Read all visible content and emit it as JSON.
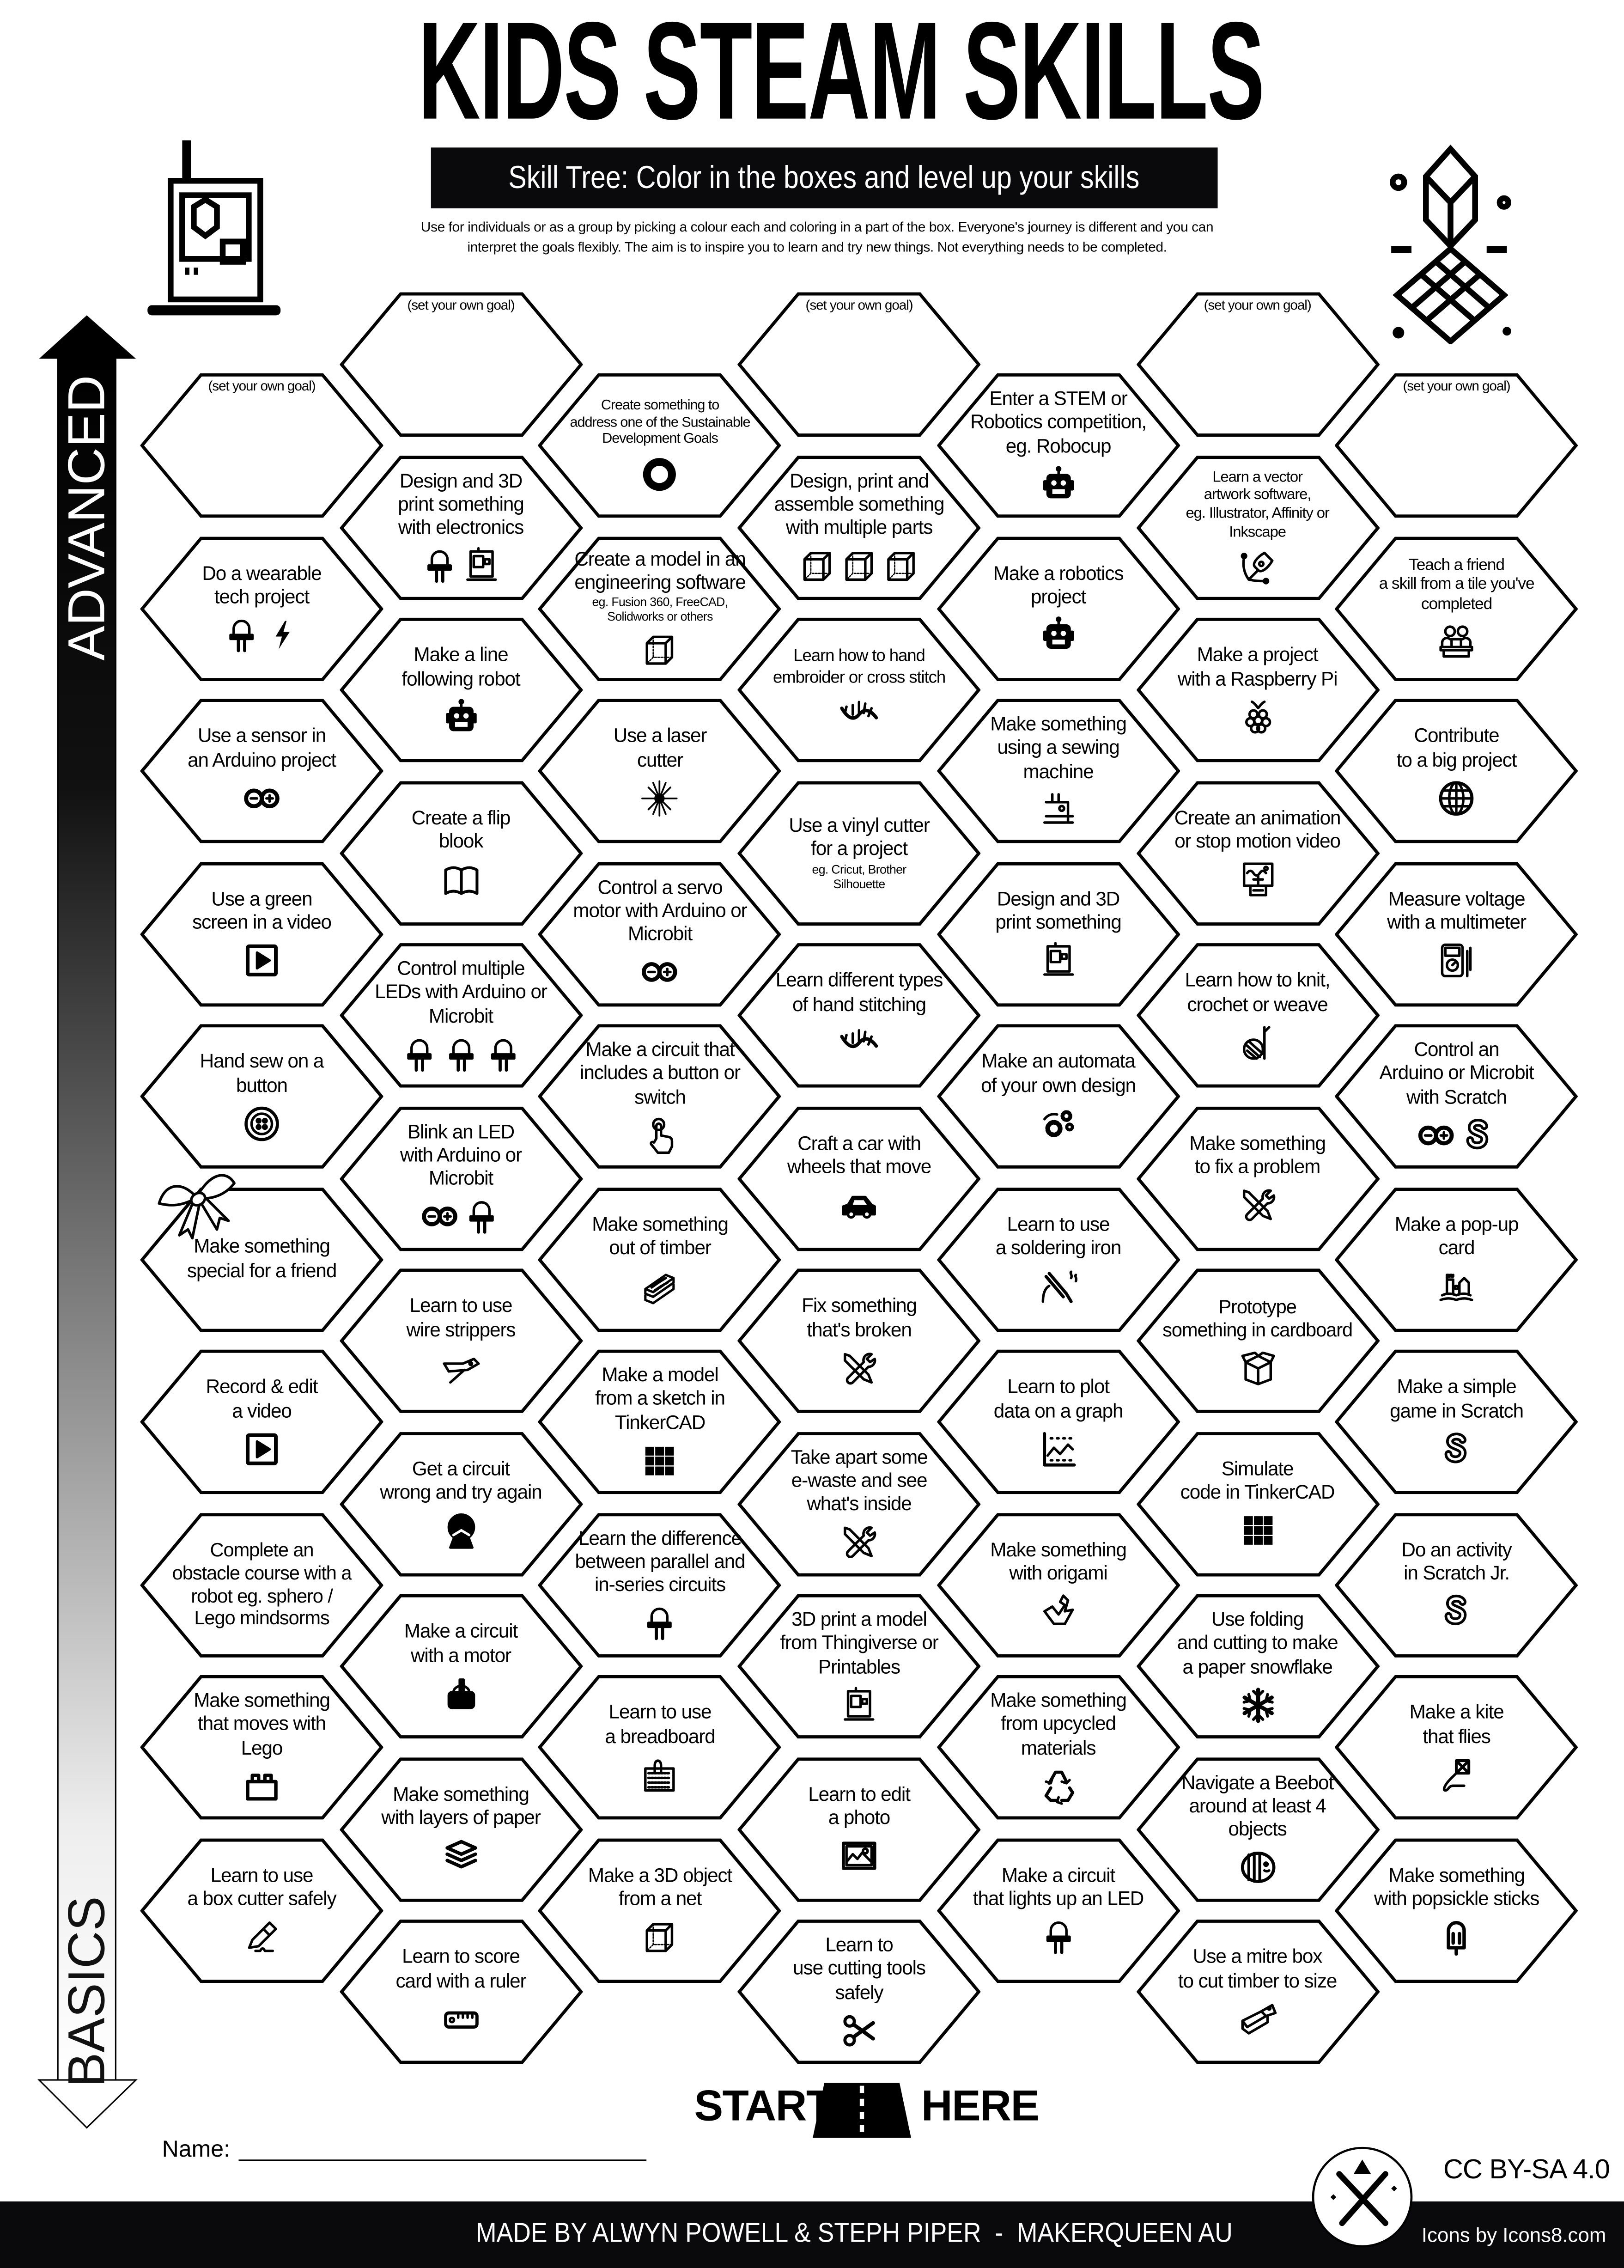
{
  "header": {
    "title": "KIDS STEAM SKILLS",
    "subtitle": "Skill Tree:  Color in the boxes and level up your skills",
    "intro": "Use for individuals or as a group by picking a colour each and coloring in a part of the box.  Everyone's journey is different and you can\ninterpret the goals flexibly.  The aim is to inspire you to learn and try new things. Not everything needs to be completed."
  },
  "progress_arrow": {
    "top_label": "ADVANCED",
    "bottom_label": "BASICS"
  },
  "columns": [
    {
      "hexes": [
        {
          "type": "goal",
          "label": "(set your own goal)"
        },
        {
          "label": "Do a wearable\ntech project",
          "icons": [
            "led",
            "lightning"
          ]
        },
        {
          "label": "Use a sensor in\nan Arduino project",
          "icons": [
            "arduino"
          ]
        },
        {
          "label": "Use a green\nscreen in a video",
          "icons": [
            "play"
          ]
        },
        {
          "label": "Hand sew on a\nbutton",
          "icons": [
            "sewing-button"
          ]
        },
        {
          "label": "Make something\nspecial for a friend",
          "icons": []
        },
        {
          "label": "Record & edit\na video",
          "icons": [
            "play"
          ]
        },
        {
          "label": "Complete an\nobstacle course with a\nrobot eg. sphero /\nLego mindsorms",
          "icons": []
        },
        {
          "label": "Make something\nthat moves with\nLego",
          "icons": [
            "lego-brick"
          ]
        },
        {
          "label": "Learn to use\na box cutter safely",
          "icons": [
            "box-cutter"
          ]
        }
      ]
    },
    {
      "hexes": [
        {
          "type": "goal",
          "label": "(set your own goal)"
        },
        {
          "label": "Design and 3D\nprint something\nwith electronics",
          "icons": [
            "led",
            "3d-printer"
          ]
        },
        {
          "label": "Make a line\nfollowing robot",
          "icons": [
            "robot"
          ]
        },
        {
          "label": "Create a flip\nblook",
          "icons": [
            "book"
          ]
        },
        {
          "label": "Control multiple\nLEDs with Arduino or\nMicrobit",
          "icons": [
            "led",
            "led",
            "led"
          ]
        },
        {
          "label": "Blink an LED\nwith Arduino or\nMicrobit",
          "icons": [
            "arduino",
            "led"
          ]
        },
        {
          "label": "Learn to use\nwire strippers",
          "icons": [
            "wire-stripper"
          ]
        },
        {
          "label": "Get a circuit\nwrong and try again",
          "icons": [
            "facepalm"
          ]
        },
        {
          "label": "Make a circuit\nwith a motor",
          "icons": [
            "motor"
          ]
        },
        {
          "label": "Make something\nwith layers of paper",
          "icons": [
            "layers"
          ]
        },
        {
          "label": "Learn to score\ncard with a ruler",
          "icons": [
            "ruler"
          ]
        }
      ]
    },
    {
      "hexes": [
        {
          "label": "Create something to\naddress one of the Sustainable\nDevelopment Goals",
          "icons": [
            "sdg-wheel"
          ]
        },
        {
          "label": "Create a model in an\nengineering software",
          "sub": "eg. Fusion 360, FreeCAD,\nSolidworks or others",
          "icons": [
            "cube"
          ]
        },
        {
          "label": "Use a laser\ncutter",
          "icons": [
            "laser"
          ]
        },
        {
          "label": "Control a servo\nmotor with Arduino or\nMicrobit",
          "icons": [
            "arduino"
          ]
        },
        {
          "label": "Make a circuit that\nincludes a button or\nswitch",
          "icons": [
            "hand-pointer"
          ]
        },
        {
          "label": "Make something\nout of timber",
          "icons": [
            "timber"
          ]
        },
        {
          "label": "Make a model\nfrom a sketch in\nTinkerCAD",
          "icons": [
            "tinkercad"
          ]
        },
        {
          "label": "Learn the difference\nbetween parallel and\nin-series circuits",
          "icons": [
            "led"
          ]
        },
        {
          "label": "Learn to use\na breadboard",
          "icons": [
            "breadboard"
          ]
        },
        {
          "label": "Make a 3D object\nfrom a net",
          "icons": [
            "cube"
          ]
        }
      ]
    },
    {
      "hexes": [
        {
          "type": "goal",
          "label": "(set your own goal)"
        },
        {
          "label": "Design, print and\nassemble something\nwith multiple parts",
          "icons": [
            "cube",
            "cube",
            "cube"
          ]
        },
        {
          "label": "Learn how to hand\nembroider or cross stitch",
          "icons": [
            "stitch"
          ]
        },
        {
          "label": "Use a vinyl cutter\nfor a project",
          "sub": "eg. Cricut, Brother\nSilhouette",
          "icons": []
        },
        {
          "label": "Learn different types\nof hand stitching",
          "icons": [
            "stitch"
          ]
        },
        {
          "label": "Craft a car with\nwheels that move",
          "icons": [
            "car"
          ]
        },
        {
          "label": "Fix something\nthat's broken",
          "icons": [
            "tools"
          ]
        },
        {
          "label": "Take apart some\ne-waste and see\nwhat's inside",
          "icons": [
            "tools"
          ]
        },
        {
          "label": "3D print a model\nfrom Thingiverse or\nPrintables",
          "icons": [
            "3d-printer"
          ]
        },
        {
          "label": "Learn to edit\na photo",
          "icons": [
            "photo"
          ]
        },
        {
          "label": "Learn to\nuse cutting tools\nsafely",
          "icons": [
            "scissors"
          ]
        }
      ]
    },
    {
      "hexes": [
        {
          "label": "Enter a STEM or\nRobotics competition,\neg. Robocup",
          "icons": [
            "robot"
          ]
        },
        {
          "label": "Make a robotics\nproject",
          "icons": [
            "robot"
          ]
        },
        {
          "label": "Make something\nusing a sewing\nmachine",
          "icons": [
            "sewing-machine"
          ]
        },
        {
          "label": "Design and 3D\nprint something",
          "icons": [
            "3d-printer"
          ]
        },
        {
          "label": "Make an automata\nof your own design",
          "icons": [
            "gears"
          ]
        },
        {
          "label": "Learn to use\na soldering iron",
          "icons": [
            "soldering-iron"
          ]
        },
        {
          "label": "Learn to plot\ndata on a graph",
          "icons": [
            "graph"
          ]
        },
        {
          "label": "Make something\nwith origami",
          "icons": [
            "origami"
          ]
        },
        {
          "label": "Make something\nfrom upcycled\nmaterials",
          "icons": [
            "recycle"
          ]
        },
        {
          "label": "Make a circuit\nthat lights up an LED",
          "icons": [
            "led"
          ]
        }
      ]
    },
    {
      "hexes": [
        {
          "type": "goal",
          "label": "(set your own goal)"
        },
        {
          "label": "Learn a vector\nartwork software,\neg. Illustrator, Affinity or\nInkscape",
          "icons": [
            "pen-tool"
          ]
        },
        {
          "label": "Make a project\nwith a Raspberry Pi",
          "icons": [
            "raspberry-pi"
          ]
        },
        {
          "label": "Create an animation\nor stop motion video",
          "icons": [
            "animation-screen"
          ]
        },
        {
          "label": "Learn how to knit,\ncrochet or weave",
          "icons": [
            "yarn"
          ]
        },
        {
          "label": "Make something\nto fix a problem",
          "icons": [
            "tools"
          ]
        },
        {
          "label": "Prototype\nsomething in cardboard",
          "icons": [
            "box"
          ]
        },
        {
          "label": "Simulate\ncode in TinkerCAD",
          "icons": [
            "tinkercad"
          ]
        },
        {
          "label": "Use folding\nand cutting to make\na paper snowflake",
          "icons": [
            "snowflake"
          ]
        },
        {
          "label": "Navigate a Beebot\naround at least 4\nobjects",
          "icons": [
            "beebot"
          ]
        },
        {
          "label": "Use a mitre box\nto cut timber to size",
          "icons": [
            "mitre-saw"
          ]
        }
      ]
    },
    {
      "hexes": [
        {
          "type": "goal",
          "label": "(set your own goal)"
        },
        {
          "label": "Teach a friend\na skill from a tile you've\ncompleted",
          "icons": [
            "teaching"
          ]
        },
        {
          "label": "Contribute\nto a big project",
          "icons": [
            "globe"
          ]
        },
        {
          "label": "Measure voltage\nwith a multimeter",
          "icons": [
            "multimeter"
          ]
        },
        {
          "label": "Control an\nArduino or Microbit\nwith Scratch",
          "icons": [
            "arduino",
            "scratch"
          ]
        },
        {
          "label": "Make a pop-up\ncard",
          "icons": [
            "popup-book"
          ]
        },
        {
          "label": "Make a simple\ngame in Scratch",
          "icons": [
            "scratch"
          ]
        },
        {
          "label": "Do an activity\nin Scratch Jr.",
          "icons": [
            "scratch"
          ]
        },
        {
          "label": "Make a kite\nthat flies",
          "icons": [
            "kite"
          ]
        },
        {
          "label": "Make something\nwith popsickle sticks",
          "icons": [
            "popsicle"
          ]
        }
      ]
    }
  ],
  "start": {
    "left": "START",
    "right": "HERE"
  },
  "name_field": {
    "label": "Name:",
    "value": ""
  },
  "footer": {
    "credit": "MADE BY ALWYN POWELL & STEPH PIPER  -  MAKERQUEEN AU",
    "license": "CC BY-SA 4.0",
    "icons_credit": "Icons by Icons8.com"
  },
  "decorations": [
    "3d-printer-icon",
    "cube-grid-icon",
    "gift-bow-icon",
    "road-icon",
    "makerqueen-logo"
  ]
}
